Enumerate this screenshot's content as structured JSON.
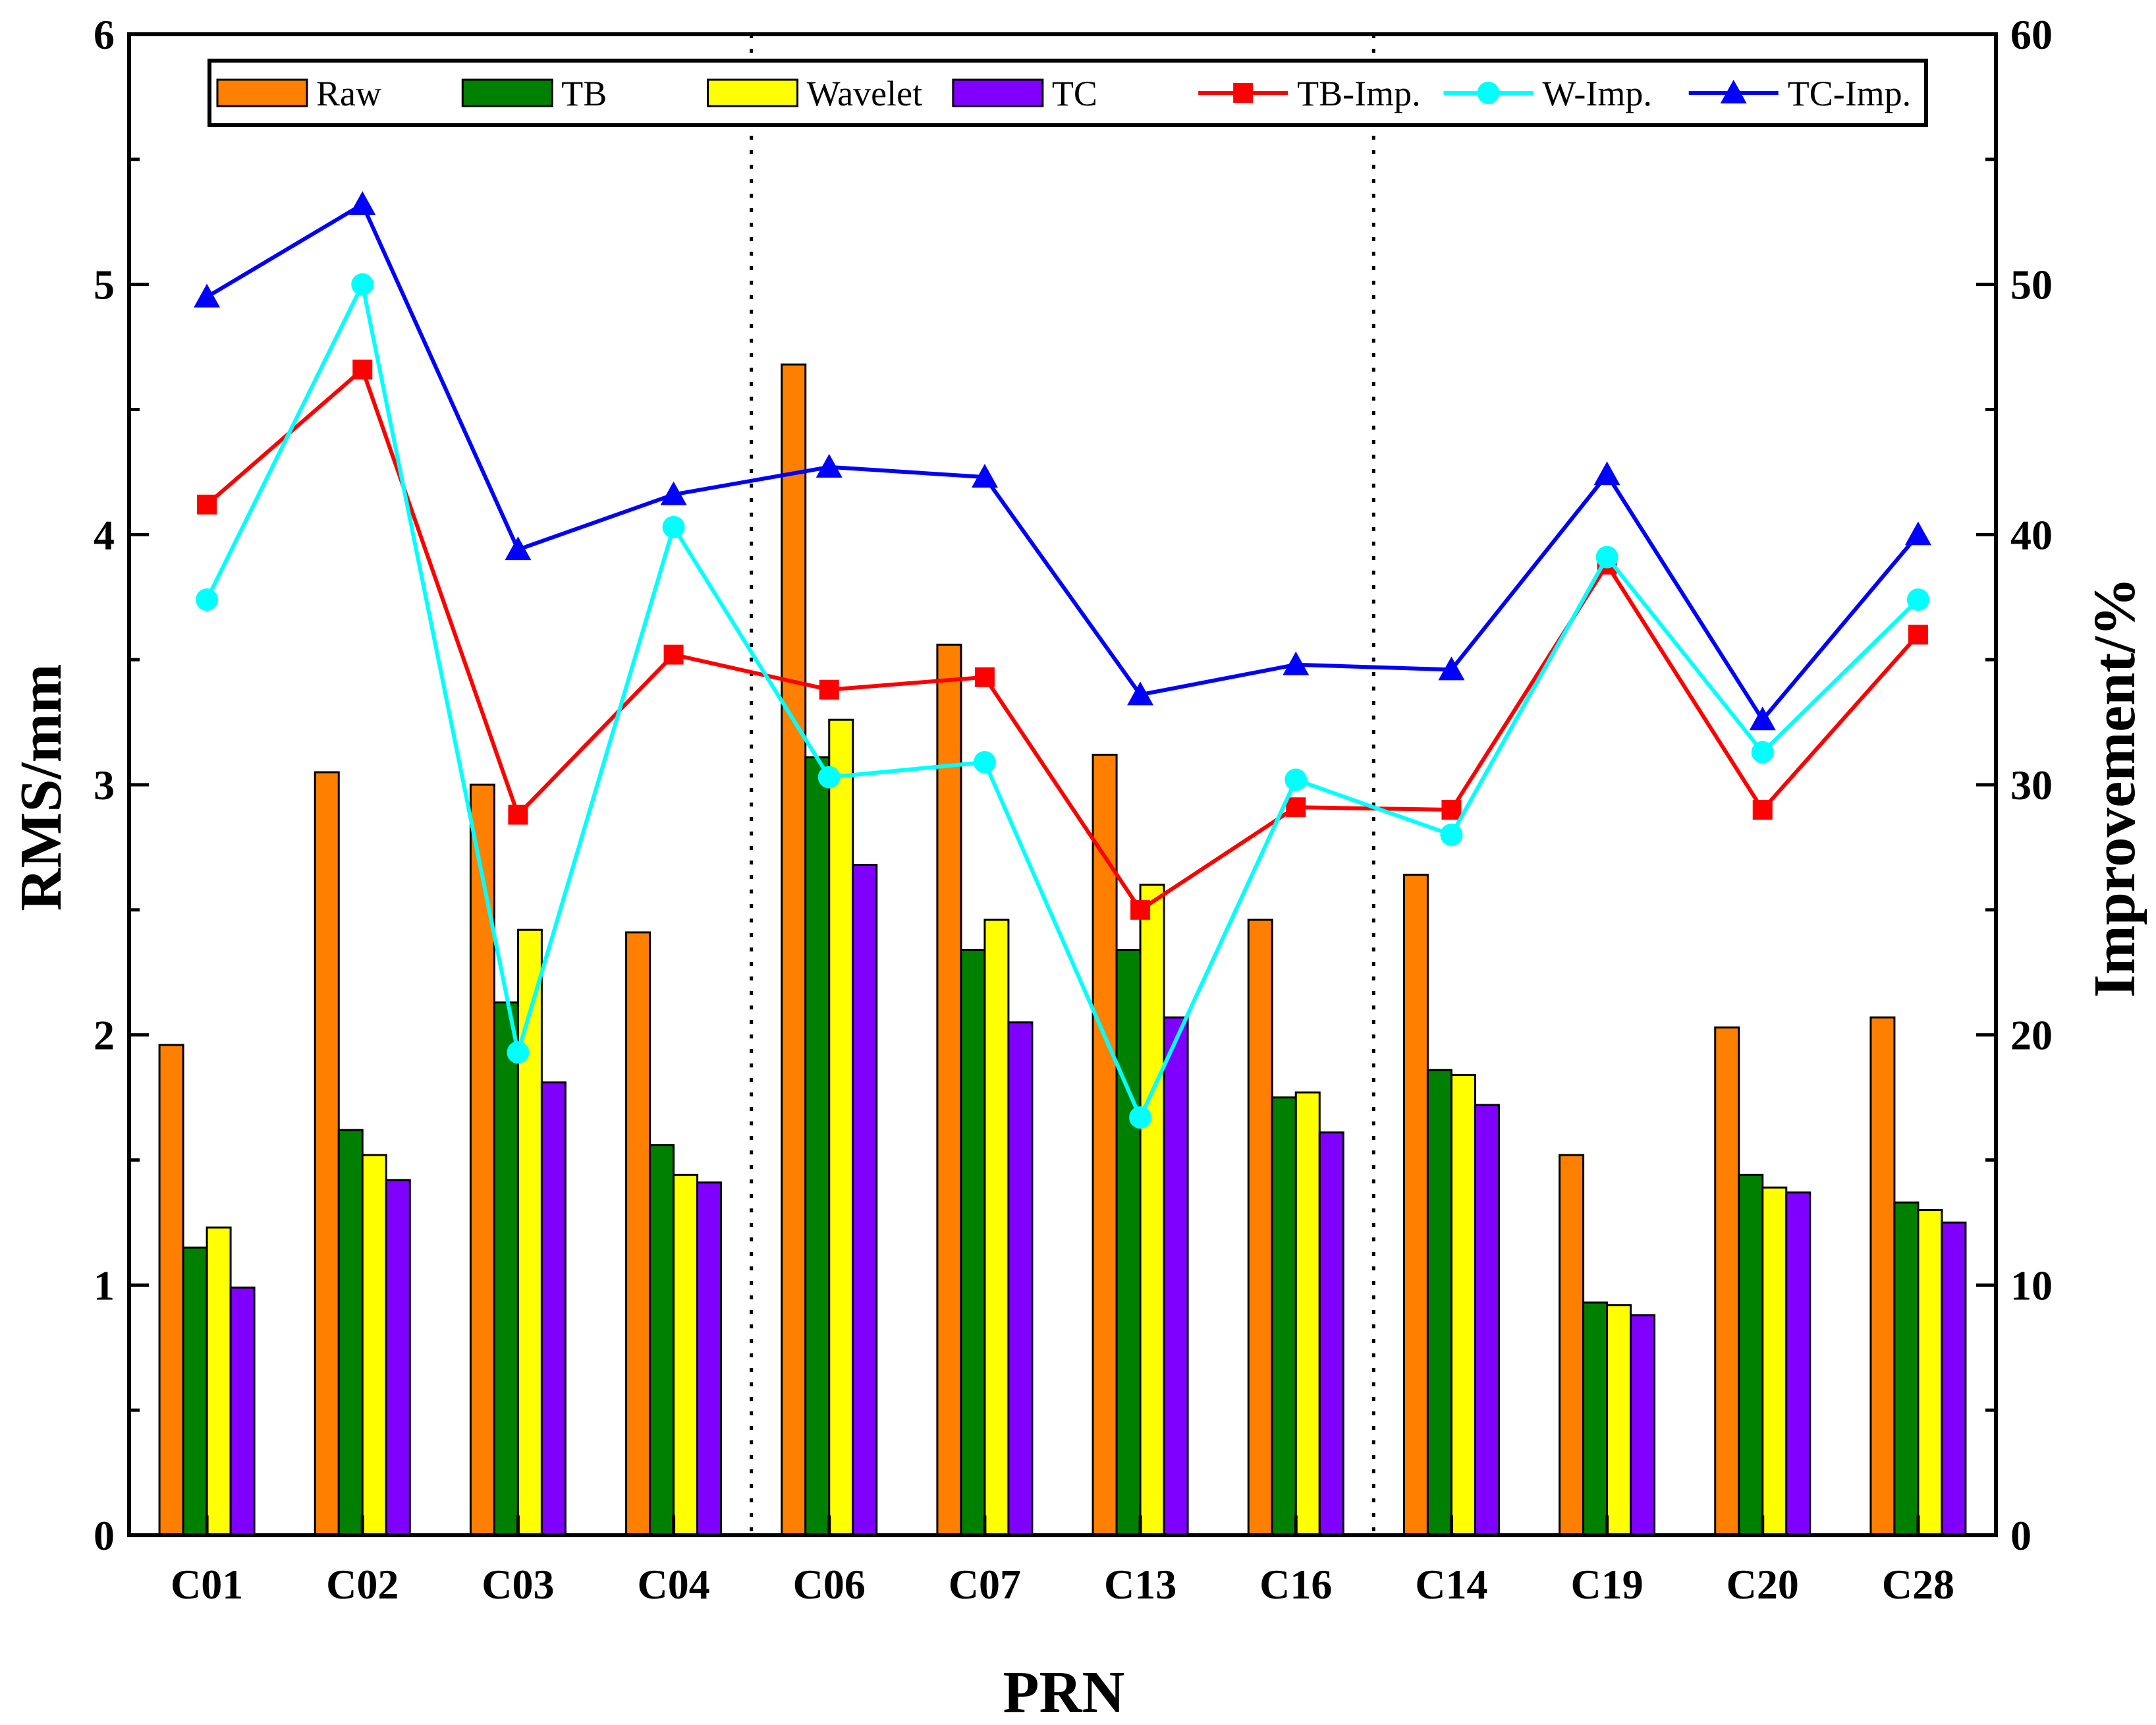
{
  "chart_data": {
    "type": "bar",
    "categories": [
      "C01",
      "C02",
      "C03",
      "C04",
      "C06",
      "C07",
      "C13",
      "C16",
      "C14",
      "C19",
      "C20",
      "C28"
    ],
    "xlabel": "PRN",
    "ylabel": "RMS/mm",
    "y2label": "Improvement/%",
    "ylim": [
      0,
      6
    ],
    "y2lim": [
      0,
      60
    ],
    "yticks": [
      "0",
      "1",
      "2",
      "3",
      "4",
      "5",
      "6"
    ],
    "y2ticks": [
      "0",
      "10",
      "20",
      "30",
      "40",
      "50",
      "60"
    ],
    "group_separators_after_index": [
      3,
      7
    ],
    "legend_position": "top",
    "series": [
      {
        "name": "Raw",
        "kind": "bar",
        "axis": "left",
        "color": "#FF8000",
        "values": [
          1.96,
          3.05,
          3.0,
          2.41,
          4.68,
          3.56,
          3.12,
          2.46,
          2.64,
          1.52,
          2.03,
          2.07
        ]
      },
      {
        "name": "TB",
        "kind": "bar",
        "axis": "left",
        "color": "#008000",
        "values": [
          1.15,
          1.62,
          2.13,
          1.56,
          3.11,
          2.34,
          2.34,
          1.75,
          1.86,
          0.93,
          1.44,
          1.33
        ]
      },
      {
        "name": "Wavelet",
        "kind": "bar",
        "axis": "left",
        "color": "#FFFF00",
        "values": [
          1.23,
          1.52,
          2.42,
          1.44,
          3.26,
          2.46,
          2.6,
          1.77,
          1.84,
          0.92,
          1.39,
          1.3
        ]
      },
      {
        "name": "TC",
        "kind": "bar",
        "axis": "left",
        "color": "#8000FF",
        "values": [
          0.99,
          1.42,
          1.81,
          1.41,
          2.68,
          2.05,
          2.07,
          1.61,
          1.72,
          0.88,
          1.37,
          1.25
        ]
      },
      {
        "name": "TB-Imp.",
        "kind": "line",
        "axis": "right",
        "color": "#FF0000",
        "marker": "square",
        "values": [
          41.2,
          46.6,
          28.8,
          35.2,
          33.8,
          34.3,
          25.0,
          29.1,
          29.0,
          38.8,
          29.0,
          36.0
        ]
      },
      {
        "name": "W-Imp.",
        "kind": "line",
        "axis": "right",
        "color": "#00FFFF",
        "marker": "circle",
        "values": [
          37.4,
          50.0,
          19.3,
          40.3,
          30.3,
          30.9,
          16.7,
          30.2,
          28.0,
          39.1,
          31.3,
          37.4
        ]
      },
      {
        "name": "TC-Imp.",
        "kind": "line",
        "axis": "right",
        "color": "#0000FF",
        "marker": "triangle",
        "values": [
          49.5,
          53.2,
          39.4,
          41.6,
          42.7,
          42.3,
          33.6,
          34.8,
          34.6,
          42.4,
          32.6,
          40.0
        ]
      }
    ]
  }
}
